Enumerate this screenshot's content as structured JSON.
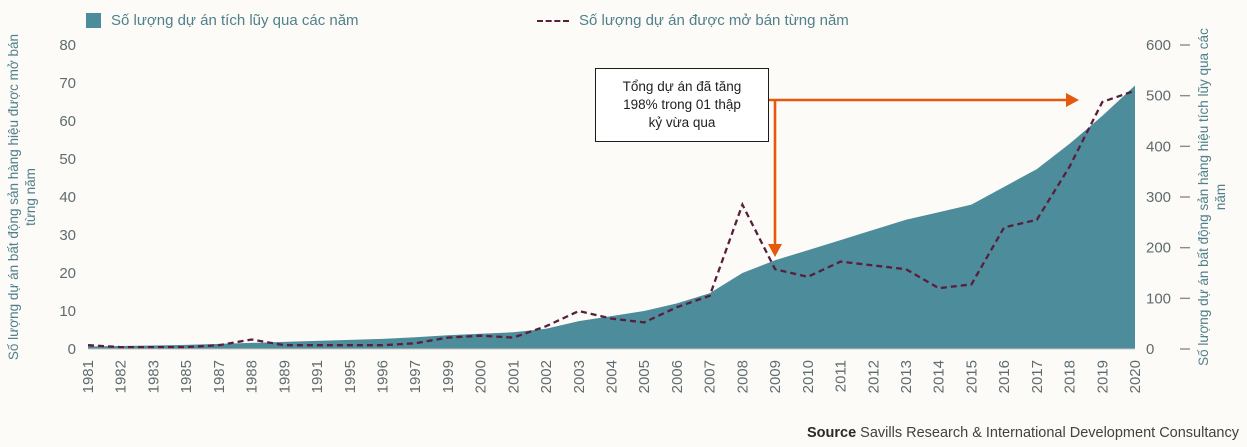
{
  "legend": {
    "area_label": "Số lượng dự án tích lũy qua các năm",
    "line_label": "Số lượng dự án được mở bán từng năm"
  },
  "axes": {
    "left_title": "Số lượng dự án bất động sản hàng hiệu được mở bán từng năm",
    "right_title": "Số lượng dự án bất động sản hàng hiệu tích lũy qua các năm",
    "left_ticks": [
      0,
      10,
      20,
      30,
      40,
      50,
      60,
      70,
      80
    ],
    "right_ticks": [
      0,
      100,
      200,
      300,
      400,
      500,
      600
    ]
  },
  "annotation": {
    "lines": [
      "Tổng dự án đã tăng",
      "198% trong 01 thập",
      "kỷ vừa qua"
    ]
  },
  "source": {
    "label": "Source",
    "text": " Savills Research & International Development Consultancy"
  },
  "colors": {
    "area": "#4d8c9a",
    "line": "#581f3d",
    "arrow": "#e4590e",
    "axis_text": "#50808b",
    "tick_text": "#5f6b6e",
    "baseline": "#c9c5bd"
  },
  "chart_data": {
    "type": "combo",
    "categories": [
      "1981",
      "1982",
      "1983",
      "1985",
      "1987",
      "1988",
      "1989",
      "1991",
      "1995",
      "1996",
      "1997",
      "1999",
      "2000",
      "2001",
      "2002",
      "2003",
      "2004",
      "2005",
      "2006",
      "2007",
      "2008",
      "2009",
      "2010",
      "2011",
      "2012",
      "2013",
      "2014",
      "2015",
      "2016",
      "2017",
      "2018",
      "2019",
      "2020"
    ],
    "series": [
      {
        "name": "Số lượng dự án tích lũy qua các năm",
        "type": "area",
        "axis": "right",
        "values": [
          5,
          6,
          7,
          8,
          10,
          12,
          14,
          16,
          18,
          20,
          23,
          27,
          30,
          33,
          40,
          55,
          65,
          75,
          90,
          110,
          150,
          175,
          195,
          215,
          235,
          255,
          270,
          285,
          320,
          355,
          405,
          460,
          520
        ]
      },
      {
        "name": "Số lượng dự án được mở bán từng năm",
        "type": "dashed-line",
        "axis": "left",
        "values": [
          1,
          0.5,
          0.5,
          0.5,
          1,
          2.5,
          1,
          1,
          1,
          1,
          1.5,
          3,
          3.5,
          3,
          6,
          10,
          8,
          7,
          11,
          14,
          38,
          21,
          19,
          23,
          22,
          21,
          16,
          17,
          32,
          34,
          48,
          65,
          68
        ]
      }
    ],
    "left_ylim": [
      0,
      80
    ],
    "right_ylim": [
      0,
      600
    ],
    "grid": false,
    "legend_position": "top",
    "annotation_text": "Tổng dự án đã tăng 198% trong 01 thập kỷ vừa qua"
  }
}
